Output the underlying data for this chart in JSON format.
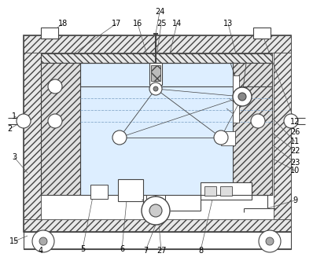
{
  "fig_width": 3.98,
  "fig_height": 3.27,
  "dpi": 100,
  "lc": "#444444",
  "lc2": "#666666",
  "bg": "white",
  "fill_hatch": "#e0e0e0",
  "fill_water": "#ddeeff",
  "fill_white": "white",
  "fill_gray": "#cccccc",
  "fill_lgray": "#eeeeee"
}
